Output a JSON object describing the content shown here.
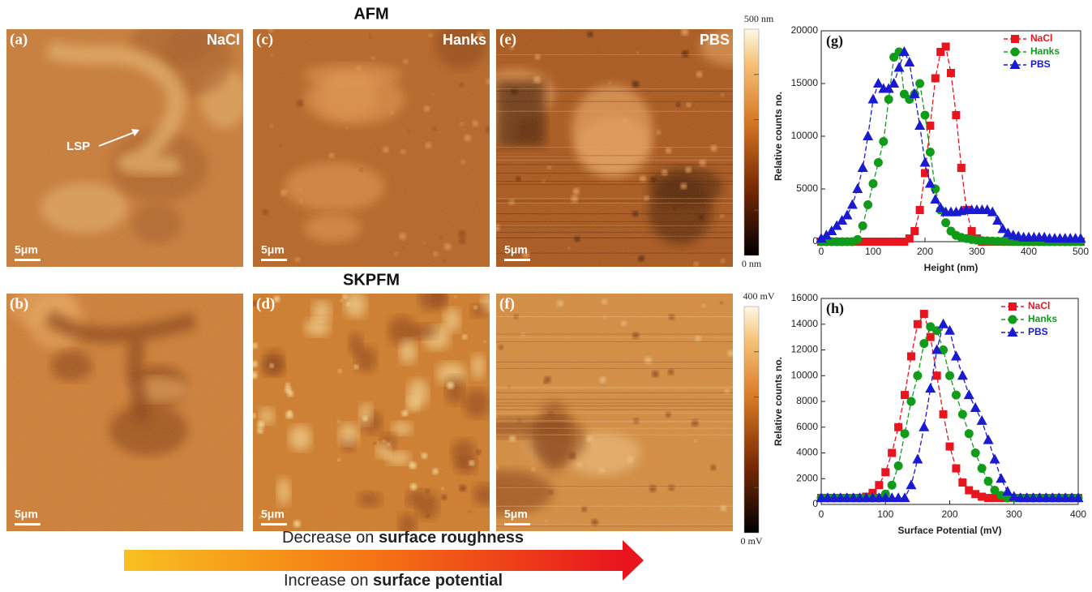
{
  "chart_data": [
    {
      "type": "line",
      "panel": "(g)",
      "xlabel": "Height (nm)",
      "ylabel": "Relative counts no.",
      "xlim": [
        0,
        500
      ],
      "ylim": [
        0,
        20000
      ],
      "xticks": [
        0,
        100,
        200,
        300,
        400,
        500
      ],
      "yticks": [
        0,
        5000,
        10000,
        15000,
        20000
      ],
      "legend": "upper right",
      "x": [
        0,
        10,
        20,
        30,
        40,
        50,
        60,
        70,
        80,
        90,
        100,
        110,
        120,
        130,
        140,
        150,
        160,
        170,
        180,
        190,
        200,
        210,
        220,
        230,
        240,
        250,
        260,
        270,
        280,
        290,
        300,
        310,
        320,
        330,
        340,
        350,
        360,
        370,
        380,
        390,
        400,
        410,
        420,
        430,
        440,
        450,
        460,
        470,
        480,
        490,
        500
      ],
      "series": [
        {
          "name": "NaCl",
          "color": "#e8141e",
          "marker": "square",
          "values": [
            0,
            0,
            0,
            0,
            0,
            0,
            0,
            0,
            0,
            0,
            0,
            0,
            0,
            0,
            0,
            0,
            0,
            300,
            1000,
            3000,
            6500,
            11000,
            15500,
            18000,
            18500,
            16000,
            12000,
            7000,
            3000,
            1000,
            300,
            0,
            0,
            0,
            0,
            0,
            0,
            0,
            0,
            0,
            0,
            0,
            0,
            0,
            0,
            0,
            0,
            0,
            0,
            0,
            0
          ]
        },
        {
          "name": "Hanks",
          "color": "#109c1a",
          "marker": "circle",
          "values": [
            0,
            0,
            0,
            0,
            0,
            0,
            0,
            200,
            1500,
            3500,
            5500,
            7500,
            9500,
            13500,
            17500,
            18000,
            14000,
            13500,
            14000,
            15000,
            12000,
            8500,
            5000,
            3000,
            1800,
            1000,
            600,
            400,
            300,
            200,
            150,
            100,
            80,
            60,
            40,
            30,
            20,
            10,
            10,
            0,
            0,
            0,
            0,
            0,
            0,
            0,
            0,
            0,
            0,
            0,
            0
          ]
        },
        {
          "name": "PBS",
          "color": "#1a1ad0",
          "marker": "triangle",
          "values": [
            300,
            600,
            1000,
            1500,
            2000,
            2500,
            3500,
            5000,
            7000,
            10000,
            13500,
            15000,
            14500,
            14500,
            15000,
            16500,
            18000,
            17000,
            14000,
            11000,
            7500,
            5500,
            4000,
            3200,
            2800,
            2800,
            2800,
            2900,
            3000,
            3000,
            3000,
            3000,
            3000,
            2800,
            2000,
            1200,
            800,
            600,
            500,
            400,
            400,
            400,
            400,
            400,
            300,
            300,
            300,
            300,
            300,
            300,
            300
          ]
        }
      ]
    },
    {
      "type": "line",
      "panel": "(h)",
      "xlabel": "Surface Potential (mV)",
      "ylabel": "Relative counts no.",
      "xlim": [
        0,
        400
      ],
      "ylim": [
        0,
        16000
      ],
      "xticks": [
        0,
        100,
        200,
        300,
        400
      ],
      "yticks": [
        0,
        2000,
        4000,
        6000,
        8000,
        10000,
        12000,
        14000,
        16000
      ],
      "legend": "upper right",
      "x": [
        0,
        10,
        20,
        30,
        40,
        50,
        60,
        70,
        80,
        90,
        100,
        110,
        120,
        130,
        140,
        150,
        160,
        170,
        180,
        190,
        200,
        210,
        220,
        230,
        240,
        250,
        260,
        270,
        280,
        290,
        300,
        310,
        320,
        330,
        340,
        350,
        360,
        370,
        380,
        390,
        400
      ],
      "series": [
        {
          "name": "NaCl",
          "color": "#e8141e",
          "marker": "square",
          "values": [
            500,
            500,
            500,
            500,
            500,
            500,
            500,
            600,
            900,
            1500,
            2500,
            4000,
            6000,
            8500,
            11500,
            14000,
            14800,
            13000,
            10000,
            7000,
            4500,
            2800,
            1700,
            1100,
            800,
            600,
            500,
            500,
            500,
            500,
            500,
            500,
            500,
            500,
            500,
            500,
            500,
            500,
            500,
            500,
            500
          ]
        },
        {
          "name": "Hanks",
          "color": "#109c1a",
          "marker": "circle",
          "values": [
            500,
            500,
            500,
            500,
            500,
            500,
            500,
            500,
            500,
            500,
            800,
            1500,
            3000,
            5500,
            8000,
            10000,
            12500,
            13800,
            13500,
            12000,
            10000,
            8500,
            7000,
            5500,
            4000,
            2800,
            1800,
            1100,
            700,
            500,
            500,
            500,
            500,
            500,
            500,
            500,
            500,
            500,
            500,
            500,
            500
          ]
        },
        {
          "name": "PBS",
          "color": "#1a1ad0",
          "marker": "triangle",
          "values": [
            500,
            500,
            500,
            500,
            500,
            500,
            500,
            500,
            500,
            500,
            500,
            500,
            500,
            500,
            1500,
            3500,
            6000,
            9000,
            12000,
            14000,
            13500,
            11500,
            10000,
            8500,
            7500,
            6500,
            5000,
            3500,
            2000,
            1000,
            600,
            500,
            500,
            500,
            500,
            500,
            500,
            500,
            500,
            500,
            500
          ]
        }
      ]
    }
  ],
  "figure": {
    "headings": [
      "AFM",
      "SKPFM"
    ],
    "panels": [
      {
        "label": "(a)",
        "sample": "NaCl",
        "scale": "5μm"
      },
      {
        "label": "(c)",
        "sample": "Hanks",
        "scale": "5μm"
      },
      {
        "label": "(e)",
        "sample": "PBS",
        "scale": "5μm"
      },
      {
        "label": "(b)",
        "scale": "5μm"
      },
      {
        "label": "(d)",
        "scale": "5μm"
      },
      {
        "label": "(f)",
        "scale": "5μm"
      }
    ],
    "annotation": "LSP",
    "colorbars": [
      {
        "max": "500 nm",
        "min": "0 nm"
      },
      {
        "max": "400 mV",
        "min": "0 mV"
      }
    ],
    "arrow_text_top": [
      "Decrease on ",
      "surface roughness"
    ],
    "arrow_text_bottom": [
      "Increase on ",
      "surface potential"
    ]
  }
}
